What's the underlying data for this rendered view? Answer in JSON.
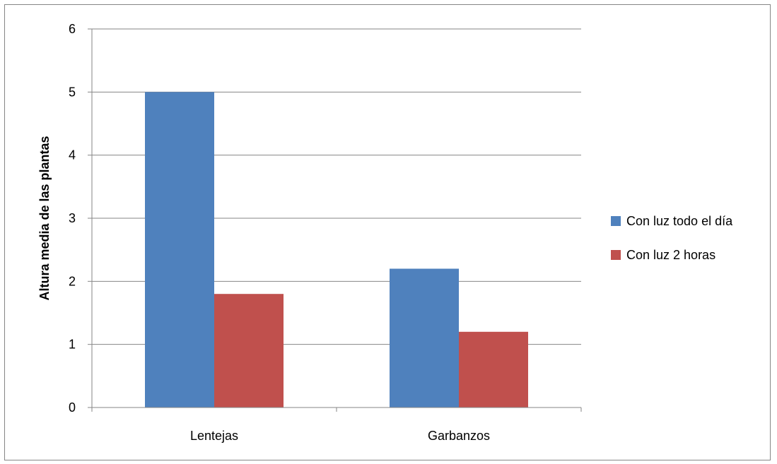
{
  "chart_data": {
    "type": "bar",
    "categories": [
      "Lentejas",
      "Garbanzos"
    ],
    "series": [
      {
        "name": "Con luz todo el día",
        "values": [
          5,
          2.2
        ],
        "color": "#4f81bd"
      },
      {
        "name": "Con luz 2 horas",
        "values": [
          1.8,
          1.2
        ],
        "color": "#c0504d"
      }
    ],
    "ylabel": "Altura media de las plantas",
    "xlabel": "",
    "title": "",
    "ylim": [
      0,
      6
    ],
    "yticks": [
      0,
      1,
      2,
      3,
      4,
      5,
      6
    ],
    "grid": true,
    "legend_position": "right"
  }
}
